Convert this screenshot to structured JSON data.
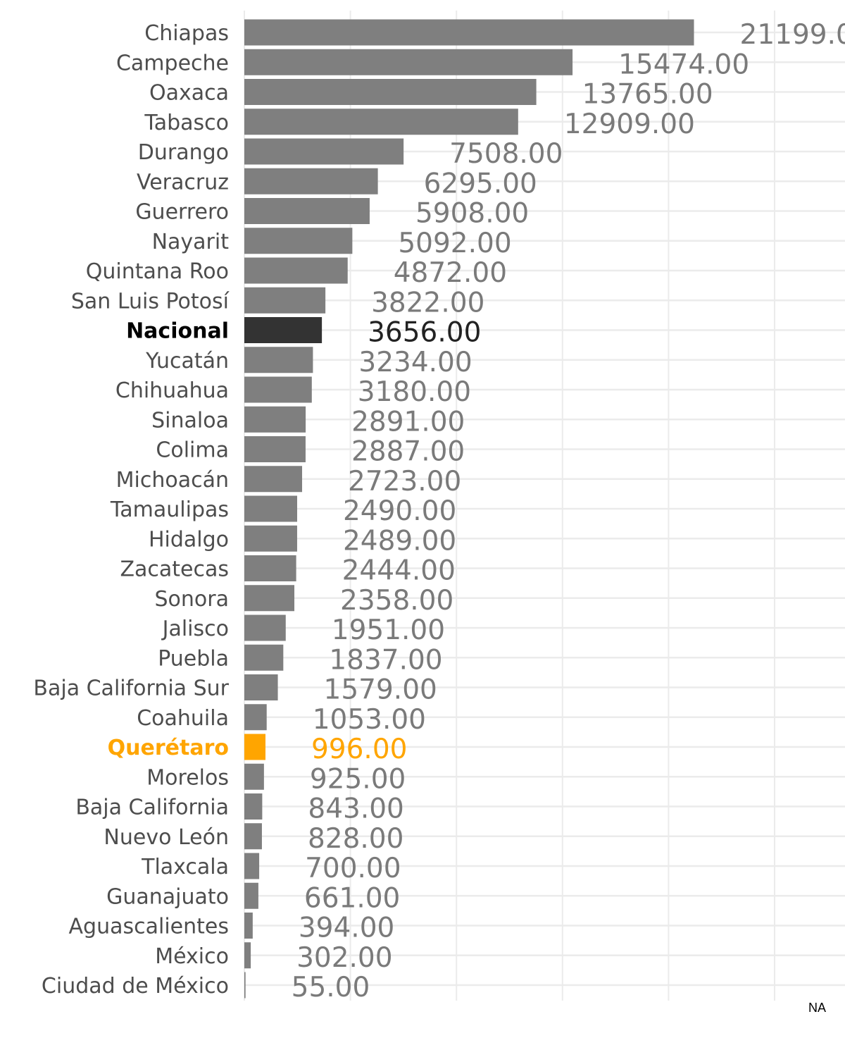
{
  "chart_data": {
    "type": "bar",
    "orientation": "horizontal",
    "title": "",
    "xlabel": "",
    "ylabel": "",
    "xlim": [
      0,
      27600
    ],
    "grid": true,
    "legend": "none",
    "value_format": "0.00",
    "categories": [
      "Chiapas",
      "Campeche",
      "Oaxaca",
      "Tabasco",
      "Durango",
      "Veracruz",
      "Guerrero",
      "Nayarit",
      "Quintana Roo",
      "San Luis Potosí",
      "Nacional",
      "Yucatán",
      "Chihuahua",
      "Sinaloa",
      "Colima",
      "Michoacán",
      "Tamaulipas",
      "Hidalgo",
      "Zacatecas",
      "Sonora",
      "Jalisco",
      "Puebla",
      "Baja California Sur",
      "Coahuila",
      "Querétaro",
      "Morelos",
      "Baja California",
      "Nuevo León",
      "Tlaxcala",
      "Guanajuato",
      "Aguascalientes",
      "México",
      "Ciudad de México"
    ],
    "values": [
      21199,
      15474,
      13765,
      12909,
      7508,
      6295,
      5908,
      5092,
      4872,
      3822,
      3656,
      3234,
      3180,
      2891,
      2887,
      2723,
      2490,
      2489,
      2444,
      2358,
      1951,
      1837,
      1579,
      1053,
      996,
      925,
      843,
      828,
      700,
      661,
      394,
      302,
      55
    ],
    "highlights": {
      "Nacional": {
        "bar_color": "#333333",
        "text_color": "#000000",
        "value_color": "#222222",
        "bold": true
      },
      "Querétaro": {
        "bar_color": "#FFA500",
        "text_color": "#FFA500",
        "value_color": "#FFA500",
        "bold": true
      }
    },
    "colors": {
      "default_bar": "#7f7f7f",
      "default_text": "#4d4d4d",
      "default_value": "#7a7a7a",
      "grid": "#ebebeb"
    }
  },
  "caption": "NA"
}
